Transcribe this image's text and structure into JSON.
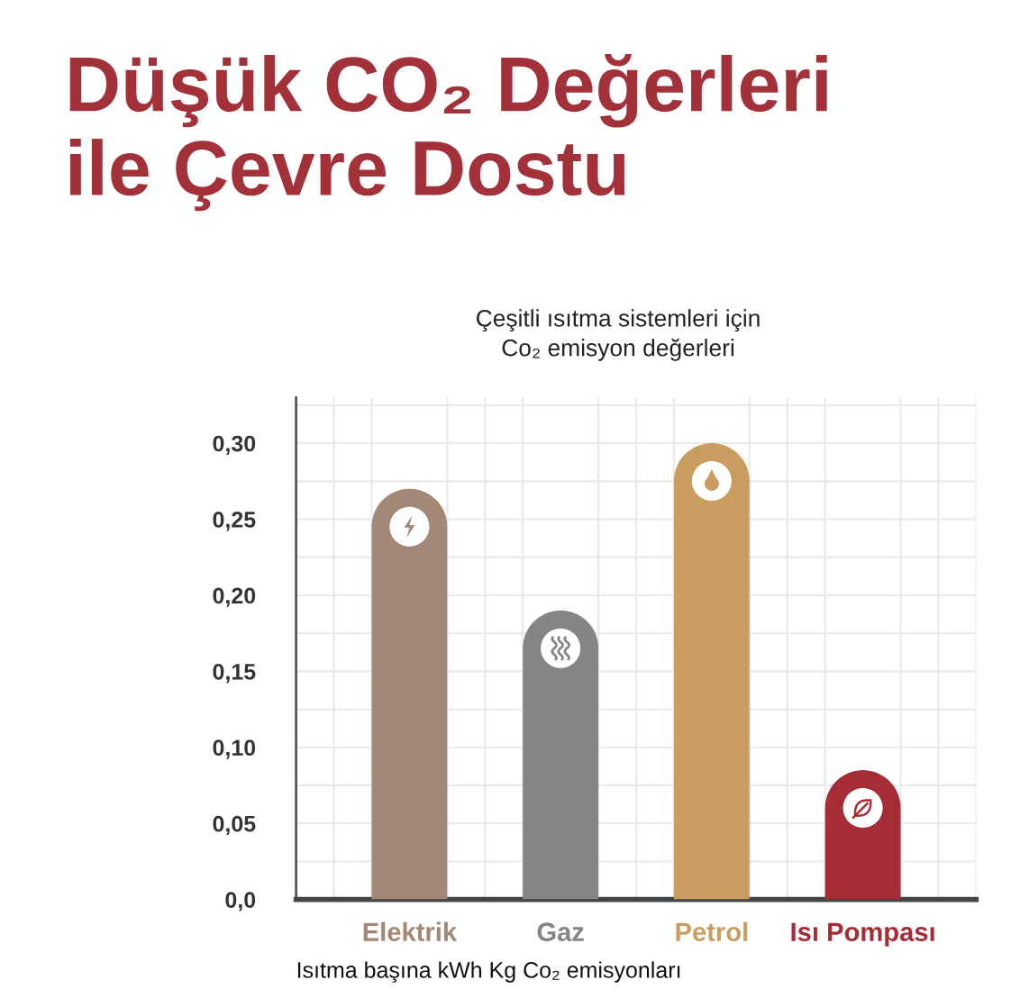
{
  "chart_data": {
    "type": "bar",
    "title": "Düşük CO₂ Değerleri\nile Çevre Dostu",
    "subtitle": "Çeşitli ısıtma sistemleri için\nCo₂ emisyon değerleri",
    "xlabel": "Isıtma başına kWh Kg Co₂ emisyonları",
    "categories": [
      "Elektrik",
      "Gaz",
      "Petrol",
      "Isı Pompası"
    ],
    "values": [
      0.27,
      0.19,
      0.3,
      0.085
    ],
    "colors": [
      "#a38878",
      "#858585",
      "#c99c60",
      "#a62d36"
    ],
    "ylim": [
      0,
      0.33
    ],
    "yticks": [
      {
        "value": 0,
        "label": "0,0"
      },
      {
        "value": 0.025,
        "label": null
      },
      {
        "value": 0.05,
        "label": "0,05"
      },
      {
        "value": 0.075,
        "label": null
      },
      {
        "value": 0.1,
        "label": "0,10"
      },
      {
        "value": 0.125,
        "label": null
      },
      {
        "value": 0.15,
        "label": "0,15"
      },
      {
        "value": 0.175,
        "label": null
      },
      {
        "value": 0.2,
        "label": "0,20"
      },
      {
        "value": 0.225,
        "label": null
      },
      {
        "value": 0.25,
        "label": "0,25"
      },
      {
        "value": 0.275,
        "label": null
      },
      {
        "value": 0.3,
        "label": "0,30"
      },
      {
        "value": 0.325,
        "label": null
      }
    ],
    "grid": true
  }
}
